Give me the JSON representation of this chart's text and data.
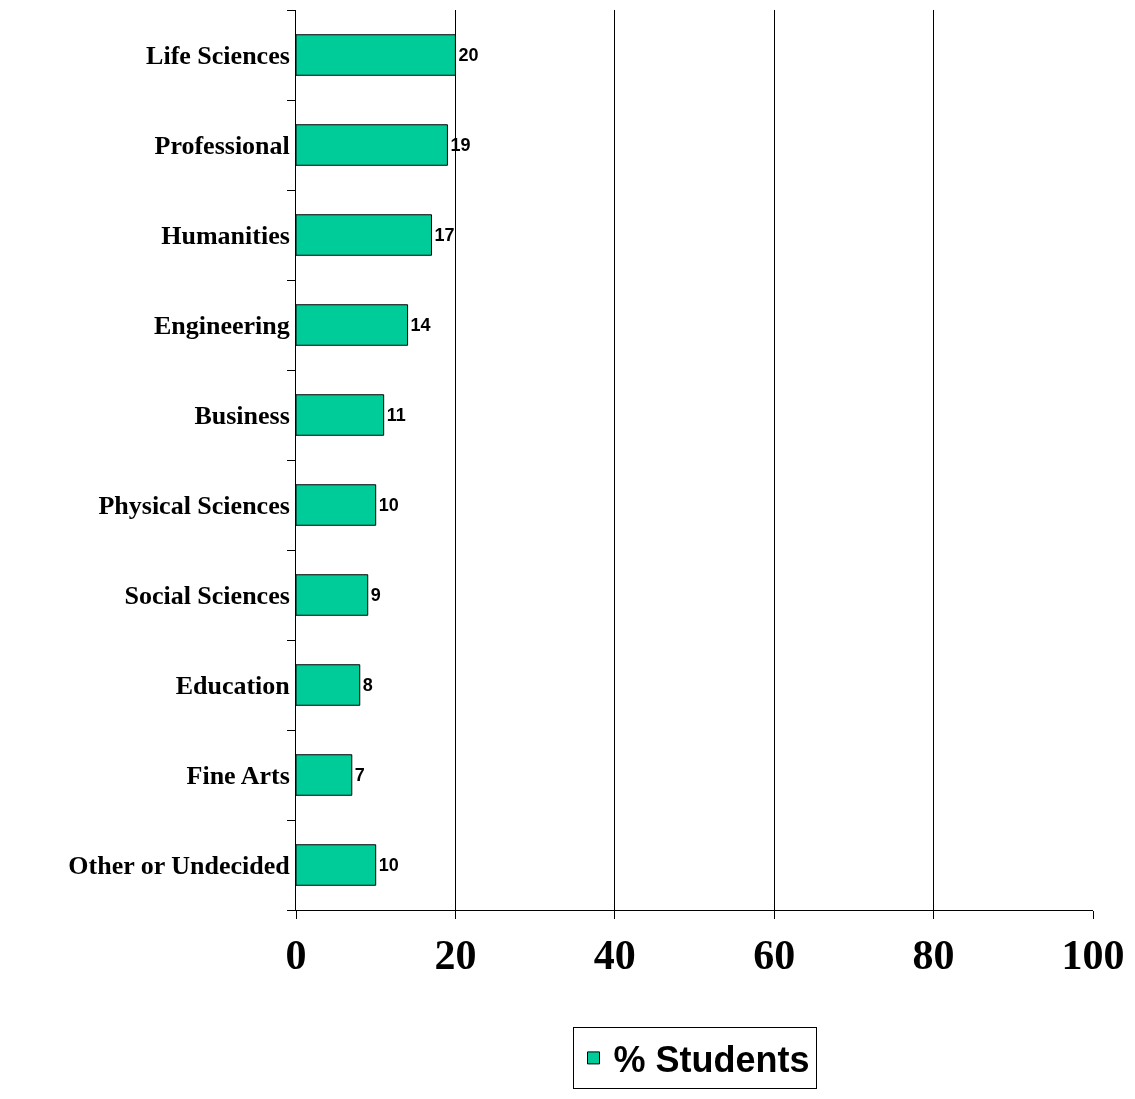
{
  "chart_data": {
    "type": "bar",
    "orientation": "horizontal",
    "categories": [
      "Life Sciences",
      "Professional",
      "Humanities",
      "Engineering",
      "Business",
      "Physical Sciences",
      "Social Sciences",
      "Education",
      "Fine Arts",
      "Other or Undecided"
    ],
    "series": [
      {
        "name": "% Students",
        "color": "#00cc99",
        "values": [
          20,
          19,
          17,
          14,
          11,
          10,
          9,
          8,
          7,
          10
        ]
      }
    ],
    "xlim": [
      0,
      100
    ],
    "xticks": [
      0,
      20,
      40,
      60,
      80,
      100
    ],
    "grid": "x",
    "legend": "bottom",
    "data_labels": true
  }
}
